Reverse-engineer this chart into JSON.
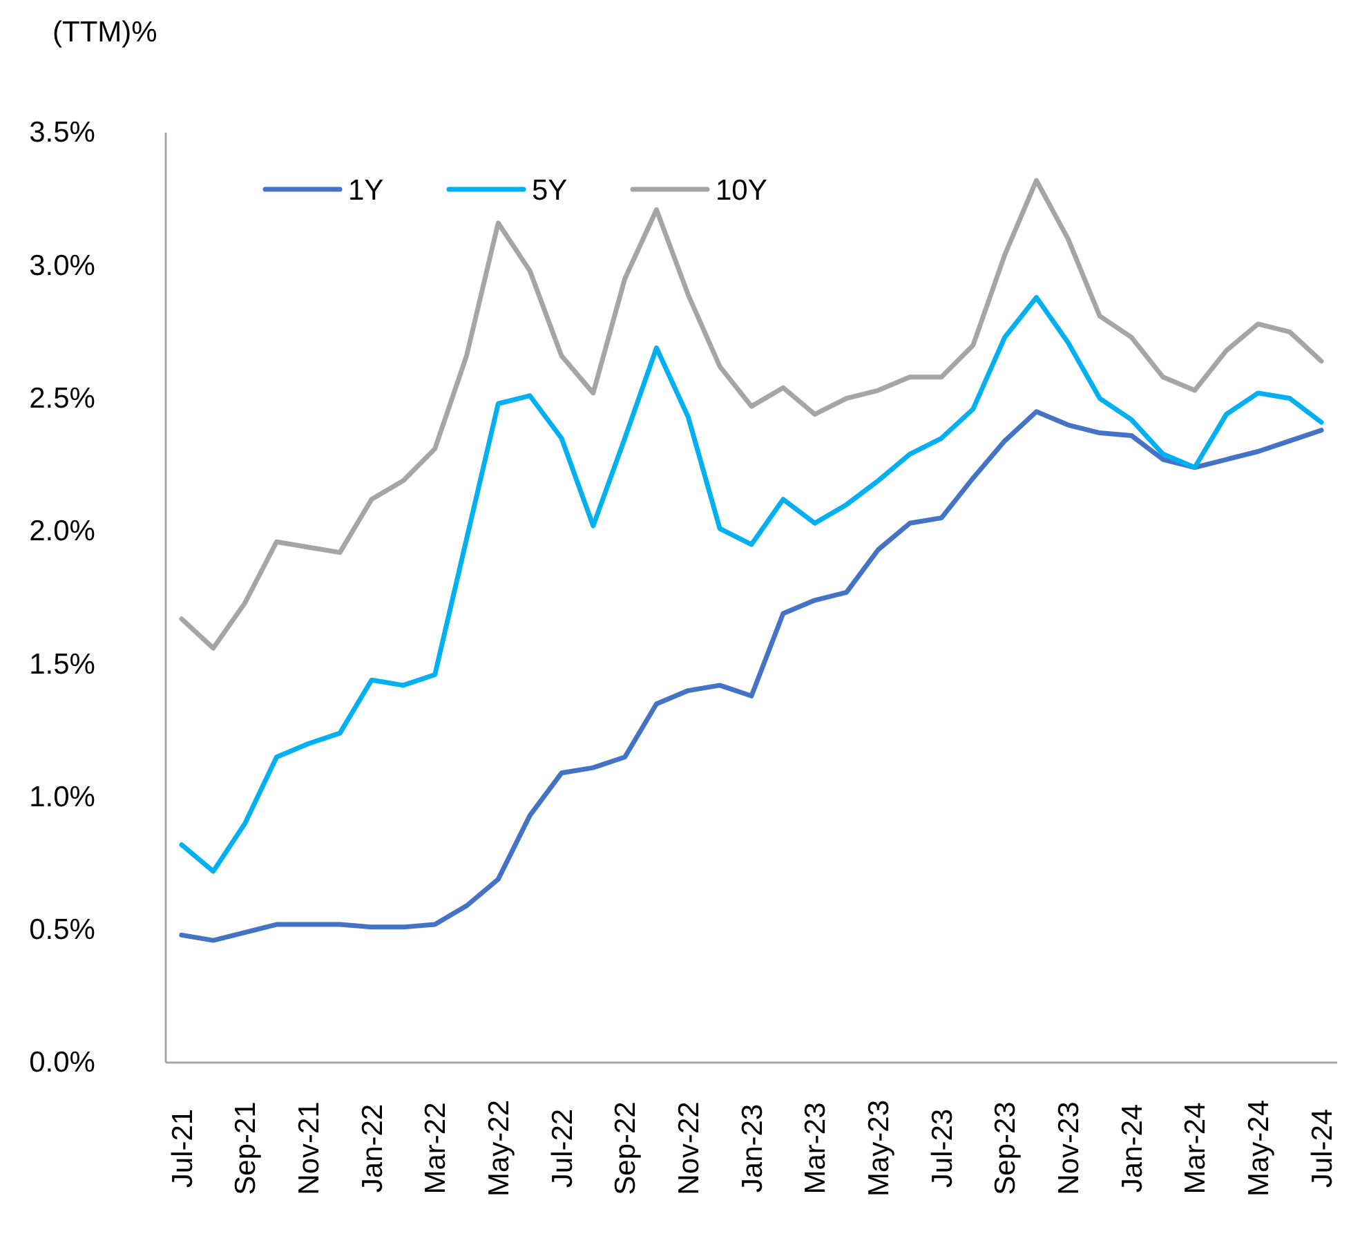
{
  "chart_data": {
    "type": "line",
    "ylabel": "(TTM)%",
    "categories": [
      "Jul-21",
      null,
      "Sep-21",
      null,
      "Nov-21",
      null,
      "Jan-22",
      null,
      "Mar-22",
      null,
      "May-22",
      null,
      "Jul-22",
      null,
      "Sep-22",
      null,
      "Nov-22",
      null,
      "Jan-23",
      null,
      "Mar-23",
      null,
      "May-23",
      null,
      "Jul-23",
      null,
      "Sep-23",
      null,
      "Nov-23",
      null,
      "Jan-24",
      null,
      "Mar-24",
      null,
      "May-24",
      null,
      "Jul-24"
    ],
    "series": [
      {
        "name": "1Y",
        "color": "#4472c4",
        "values": [
          0.48,
          0.46,
          0.49,
          0.52,
          0.52,
          0.52,
          0.51,
          0.51,
          0.52,
          0.59,
          0.69,
          0.93,
          1.09,
          1.11,
          1.15,
          1.35,
          1.4,
          1.42,
          1.38,
          1.69,
          1.74,
          1.77,
          1.93,
          2.03,
          2.05,
          2.2,
          2.34,
          2.45,
          2.4,
          2.37,
          2.36,
          2.27,
          2.24,
          2.27,
          2.3,
          2.34,
          2.38
        ]
      },
      {
        "name": "5Y",
        "color": "#00b0f0",
        "values": [
          0.82,
          0.72,
          0.9,
          1.15,
          1.2,
          1.24,
          1.44,
          1.42,
          1.46,
          1.97,
          2.48,
          2.51,
          2.35,
          2.02,
          2.35,
          2.69,
          2.43,
          2.01,
          1.95,
          2.12,
          2.03,
          2.1,
          2.19,
          2.29,
          2.35,
          2.46,
          2.73,
          2.88,
          2.71,
          2.5,
          2.42,
          2.29,
          2.24,
          2.44,
          2.52,
          2.5,
          2.41
        ]
      },
      {
        "name": "10Y",
        "color": "#a5a5a5",
        "values": [
          1.67,
          1.56,
          1.73,
          1.96,
          1.94,
          1.92,
          2.12,
          2.19,
          2.31,
          2.66,
          3.16,
          2.98,
          2.66,
          2.52,
          2.95,
          3.21,
          2.89,
          2.62,
          2.47,
          2.54,
          2.44,
          2.5,
          2.53,
          2.58,
          2.58,
          2.7,
          3.04,
          3.32,
          3.1,
          2.81,
          2.73,
          2.58,
          2.53,
          2.68,
          2.78,
          2.75,
          2.64
        ]
      }
    ],
    "ylim": [
      0,
      3.5
    ],
    "yticks": [
      {
        "value": 0,
        "label": "0.0%"
      },
      {
        "value": 0.5,
        "label": "0.5%"
      },
      {
        "value": 1,
        "label": "1.0%"
      },
      {
        "value": 1.5,
        "label": "1.5%"
      },
      {
        "value": 2,
        "label": "2.0%"
      },
      {
        "value": 2.5,
        "label": "2.5%"
      },
      {
        "value": 3,
        "label": "3.0%"
      },
      {
        "value": 3.5,
        "label": "3.5%"
      }
    ],
    "grid": false,
    "legend": "top",
    "marker": "none",
    "line_style": "solid"
  }
}
